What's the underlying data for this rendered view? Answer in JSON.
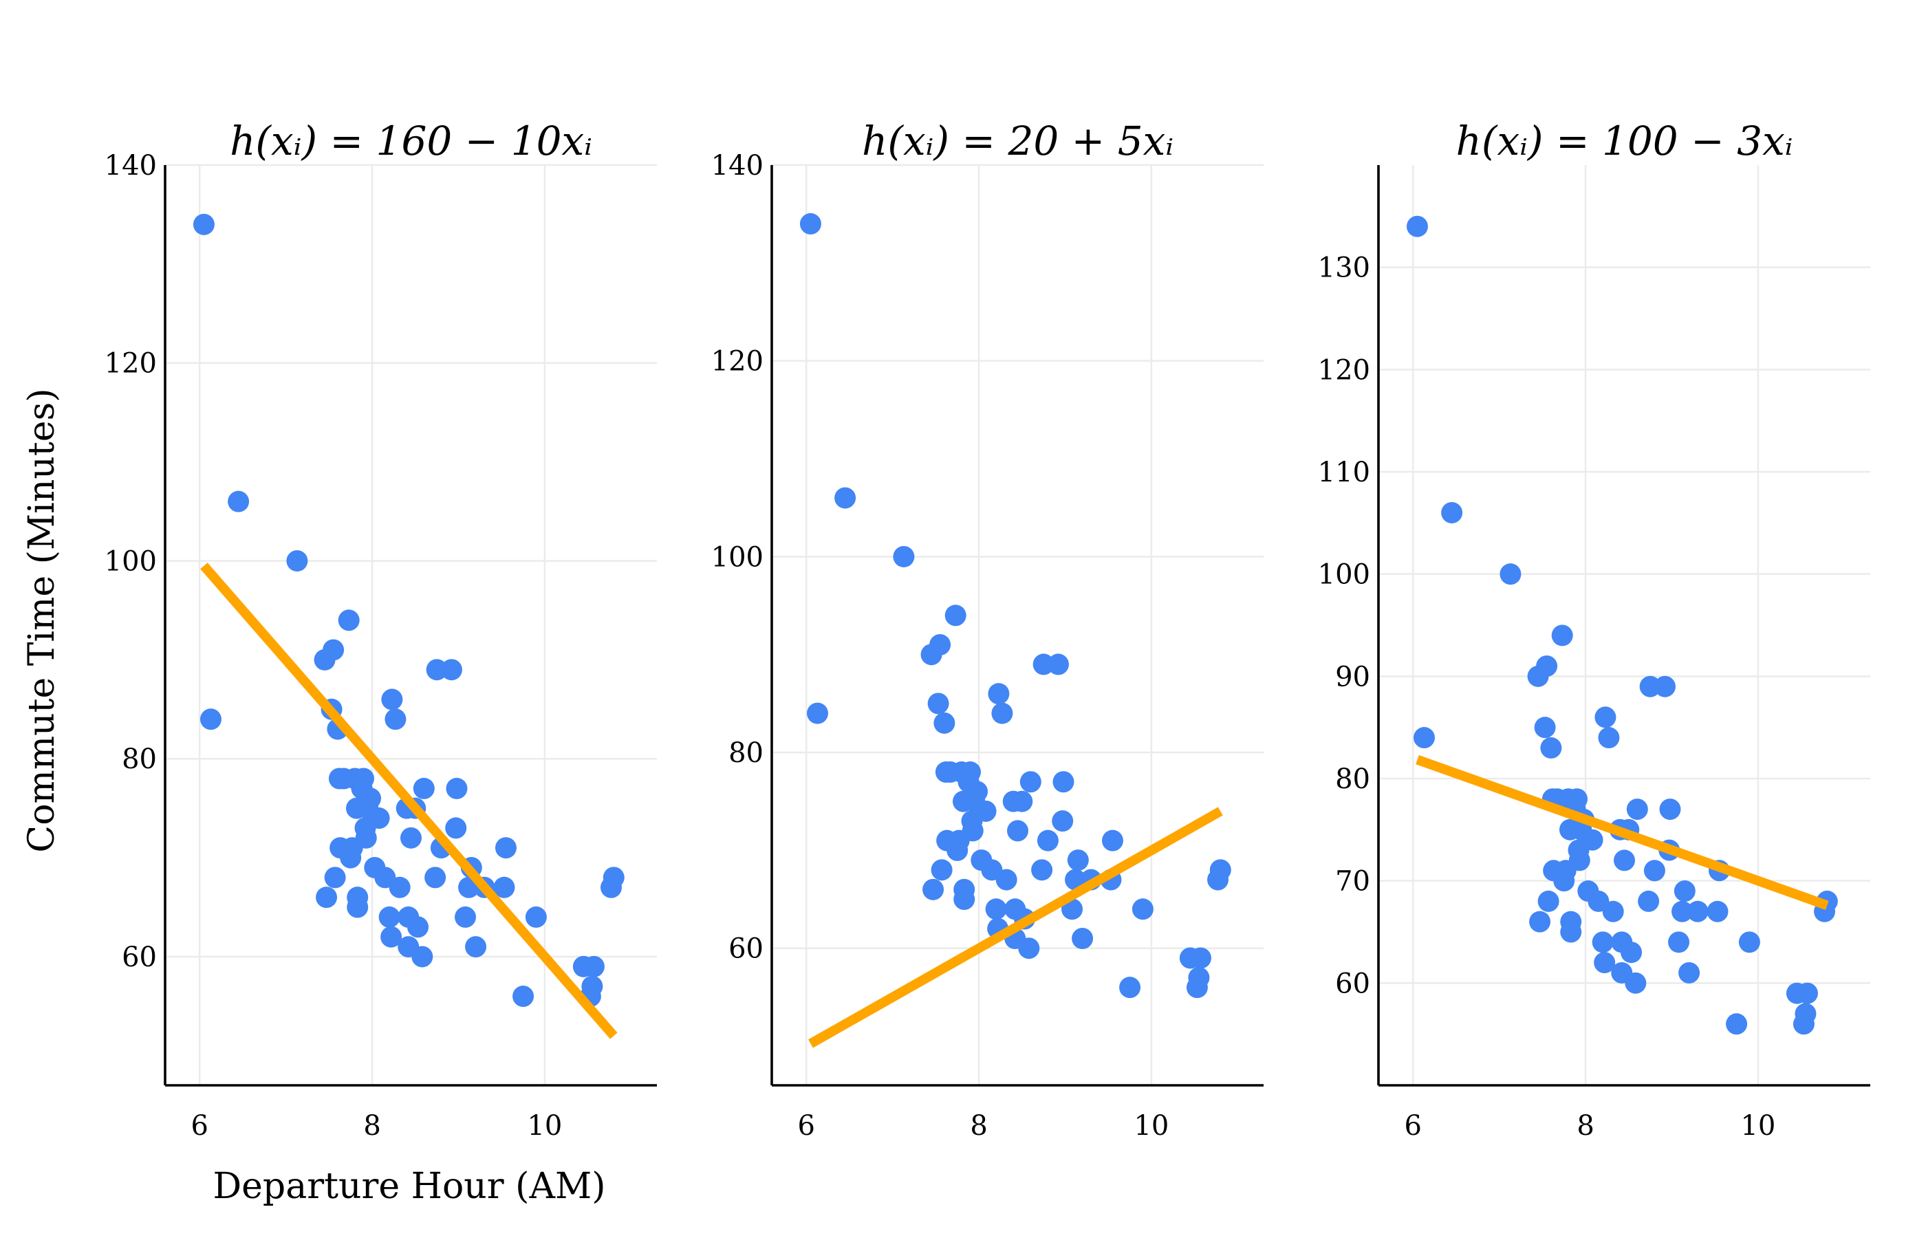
{
  "chart_data": {
    "type": "scatter",
    "xlabel": "Departure Hour (AM)",
    "ylabel": "Commute Time (Minutes)",
    "colors": {
      "points": "#4285f4",
      "line": "#ffa500",
      "grid": "#ebebeb",
      "axis": "#000000"
    },
    "points": {
      "x": [
        6.05,
        6.13,
        6.45,
        7.13,
        7.45,
        7.47,
        7.53,
        7.55,
        7.57,
        7.6,
        7.62,
        7.63,
        7.67,
        7.73,
        7.75,
        7.77,
        7.8,
        7.82,
        7.83,
        7.83,
        7.88,
        7.9,
        7.92,
        7.93,
        7.95,
        7.97,
        7.98,
        8.03,
        8.08,
        8.15,
        8.2,
        8.22,
        8.23,
        8.27,
        8.32,
        8.4,
        8.42,
        8.42,
        8.45,
        8.5,
        8.53,
        8.58,
        8.6,
        8.73,
        8.75,
        8.8,
        8.92,
        8.97,
        8.98,
        9.08,
        9.12,
        9.15,
        9.2,
        9.3,
        9.53,
        9.55,
        9.75,
        9.9,
        10.45,
        10.53,
        10.55,
        10.57,
        10.77,
        10.8
      ],
      "y": [
        134,
        84,
        106,
        100,
        90,
        66,
        85,
        91,
        68,
        83,
        78,
        71,
        78,
        94,
        70,
        71,
        78,
        75,
        66,
        65,
        77,
        78,
        73,
        72,
        75,
        76,
        76,
        69,
        74,
        68,
        64,
        62,
        86,
        84,
        67,
        75,
        64,
        61,
        72,
        75,
        63,
        60,
        77,
        68,
        89,
        71,
        89,
        73,
        77,
        64,
        67,
        69,
        61,
        67,
        67,
        71,
        56,
        64,
        59,
        56,
        57,
        59,
        67,
        68
      ]
    },
    "x_axis": {
      "range": [
        5.6,
        11.3
      ],
      "ticks": [
        6,
        8,
        10
      ]
    },
    "panels": [
      {
        "title": "h(xᵢ) = 160 − 10xᵢ",
        "intercept": 160,
        "slope": -10,
        "ylim": [
          47,
          140
        ],
        "yticks": [
          60,
          80,
          100,
          120,
          140
        ]
      },
      {
        "title": "h(xᵢ) = 20 + 5xᵢ",
        "intercept": 20,
        "slope": 5,
        "ylim": [
          46,
          140
        ],
        "yticks": [
          60,
          80,
          100,
          120,
          140
        ]
      },
      {
        "title": "h(xᵢ) = 100 − 3xᵢ",
        "intercept": 100,
        "slope": -3,
        "ylim": [
          50,
          140
        ],
        "yticks": [
          60,
          70,
          80,
          90,
          100,
          110,
          120,
          130
        ]
      }
    ],
    "line_x_range": [
      6.05,
      10.8
    ]
  }
}
